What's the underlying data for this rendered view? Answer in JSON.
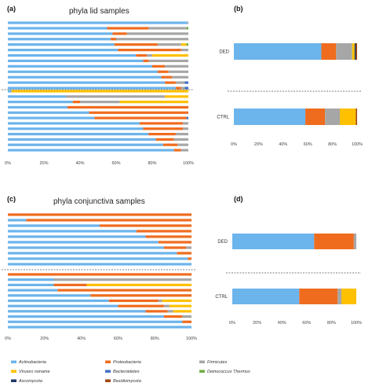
{
  "colors": {
    "Actinobacteria": "#6cb4ec",
    "Proteobacteria": "#ef6c1e",
    "Firmicutes": "#a6a6a6",
    "Viruses noname": "#ffc000",
    "Bacteroidetes": "#4472c4",
    "Deinococcus Thermus": "#70ad47",
    "Ascomycota": "#1f3864",
    "Basidiomycota": "#9e480e"
  },
  "legend": [
    "Actinobacteria",
    "Proteobacteria",
    "Firmicutes",
    "Viruses noname",
    "Bacteroidetes",
    "Deinococcus Thermus",
    "Ascomycota",
    "Basidiomycota"
  ],
  "chart_data": [
    {
      "id": "a",
      "panel_label": "(a)",
      "type": "bar",
      "orientation": "horizontal",
      "stacked": true,
      "title": "phyla lid samples",
      "xlim": [
        0,
        100
      ],
      "xticks": [
        "0%",
        "20%",
        "40%",
        "60%",
        "80%",
        "100%"
      ],
      "groups": [
        {
          "name": "",
          "rows": [
            {
              "Actinobacteria": 99.5,
              "Proteobacteria": 0,
              "Firmicutes": 0.5
            },
            {
              "Actinobacteria": 55,
              "Proteobacteria": 23,
              "Firmicutes": 21,
              "Deinococcus Thermus": 1
            },
            {
              "Actinobacteria": 58,
              "Proteobacteria": 8,
              "Firmicutes": 34
            },
            {
              "Actinobacteria": 57,
              "Proteobacteria": 3,
              "Firmicutes": 40
            },
            {
              "Actinobacteria": 59,
              "Proteobacteria": 24,
              "Firmicutes": 13,
              "Viruses noname": 3,
              "Deinococcus Thermus": 1
            },
            {
              "Actinobacteria": 61,
              "Proteobacteria": 35,
              "Firmicutes": 4
            },
            {
              "Actinobacteria": 71,
              "Proteobacteria": 6,
              "Firmicutes": 3,
              "Viruses noname": 20
            },
            {
              "Actinobacteria": 75,
              "Proteobacteria": 3,
              "Firmicutes": 22
            },
            {
              "Actinobacteria": 80,
              "Proteobacteria": 7,
              "Firmicutes": 13
            },
            {
              "Actinobacteria": 83,
              "Proteobacteria": 6,
              "Firmicutes": 11
            },
            {
              "Actinobacteria": 85,
              "Proteobacteria": 6,
              "Firmicutes": 9
            },
            {
              "Actinobacteria": 87,
              "Proteobacteria": 6,
              "Firmicutes": 5,
              "Bacteroidetes": 2
            },
            {
              "Actinobacteria": 93,
              "Proteobacteria": 3,
              "Firmicutes": 2,
              "Bacteroidetes": 2
            }
          ]
        },
        {
          "name": "",
          "rows": [
            {
              "Actinobacteria": 2,
              "Viruses noname": 98
            },
            {
              "Actinobacteria": 32,
              "Proteobacteria": 0,
              "Firmicutes": 55,
              "Viruses noname": 13
            },
            {
              "Actinobacteria": 36,
              "Proteobacteria": 4,
              "Firmicutes": 22,
              "Viruses noname": 38
            },
            {
              "Actinobacteria": 33,
              "Proteobacteria": 67
            },
            {
              "Actinobacteria": 45,
              "Proteobacteria": 55
            },
            {
              "Actinobacteria": 48,
              "Proteobacteria": 51,
              "Bacteroidetes": 1
            },
            {
              "Actinobacteria": 73,
              "Proteobacteria": 24,
              "Firmicutes": 3
            },
            {
              "Actinobacteria": 75,
              "Proteobacteria": 22,
              "Firmicutes": 3
            },
            {
              "Actinobacteria": 78,
              "Proteobacteria": 15,
              "Firmicutes": 7
            },
            {
              "Actinobacteria": 82,
              "Proteobacteria": 10,
              "Firmicutes": 8
            },
            {
              "Actinobacteria": 86,
              "Proteobacteria": 8,
              "Firmicutes": 6
            },
            {
              "Actinobacteria": 92,
              "Proteobacteria": 4,
              "Firmicutes": 4
            }
          ]
        }
      ]
    },
    {
      "id": "b",
      "panel_label": "(b)",
      "type": "bar",
      "orientation": "horizontal",
      "stacked": true,
      "title": "",
      "xlim": [
        0,
        100
      ],
      "xticks": [
        "0%",
        "20%",
        "40%",
        "60%",
        "80%",
        "100%"
      ],
      "groups": [
        {
          "name": "DED",
          "rows": [
            {
              "Actinobacteria": 71,
              "Proteobacteria": 12,
              "Firmicutes": 13,
              "Viruses noname": 2,
              "Basidiomycota": 1,
              "Ascomycota": 1
            }
          ]
        },
        {
          "name": "CTRL",
          "rows": [
            {
              "Actinobacteria": 58,
              "Proteobacteria": 16,
              "Firmicutes": 12,
              "Viruses noname": 13,
              "Basidiomycota": 1
            }
          ]
        }
      ]
    },
    {
      "id": "c",
      "panel_label": "(c)",
      "type": "bar",
      "orientation": "horizontal",
      "stacked": true,
      "title": "phyla conjunctiva samples",
      "xlim": [
        0,
        100
      ],
      "xticks": [
        "0%",
        "20%",
        "40%",
        "60%",
        "80%",
        "100%"
      ],
      "groups": [
        {
          "name": "",
          "rows": [
            {
              "Actinobacteria": 0,
              "Proteobacteria": 100
            },
            {
              "Actinobacteria": 10,
              "Proteobacteria": 90
            },
            {
              "Actinobacteria": 50,
              "Proteobacteria": 50
            },
            {
              "Actinobacteria": 70,
              "Proteobacteria": 30
            },
            {
              "Actinobacteria": 75,
              "Proteobacteria": 25
            },
            {
              "Actinobacteria": 82,
              "Proteobacteria": 18
            },
            {
              "Actinobacteria": 85,
              "Proteobacteria": 12,
              "Firmicutes": 3
            },
            {
              "Actinobacteria": 92,
              "Proteobacteria": 8
            },
            {
              "Actinobacteria": 98,
              "Proteobacteria": 2
            },
            {
              "Actinobacteria": 100
            }
          ]
        },
        {
          "name": "",
          "rows": [
            {
              "Actinobacteria": 0,
              "Proteobacteria": 100
            },
            {
              "Actinobacteria": 25,
              "Proteobacteria": 0,
              "Firmicutes": 75
            },
            {
              "Actinobacteria": 25,
              "Proteobacteria": 18,
              "Firmicutes": 0,
              "Viruses noname": 57
            },
            {
              "Actinobacteria": 27,
              "Proteobacteria": 73
            },
            {
              "Actinobacteria": 45,
              "Proteobacteria": 55
            },
            {
              "Actinobacteria": 55,
              "Proteobacteria": 27,
              "Firmicutes": 2,
              "Viruses noname": 16
            },
            {
              "Actinobacteria": 60,
              "Proteobacteria": 25,
              "Firmicutes": 3,
              "Viruses noname": 12
            },
            {
              "Actinobacteria": 75,
              "Proteobacteria": 12,
              "Firmicutes": 3,
              "Viruses noname": 10
            },
            {
              "Actinobacteria": 85,
              "Proteobacteria": 10,
              "Firmicutes": 5
            },
            {
              "Actinobacteria": 95,
              "Proteobacteria": 5
            },
            {
              "Actinobacteria": 100
            }
          ]
        }
      ]
    },
    {
      "id": "d",
      "panel_label": "(d)",
      "type": "bar",
      "orientation": "horizontal",
      "stacked": true,
      "title": "",
      "xlim": [
        0,
        100
      ],
      "xticks": [
        "0%",
        "20%",
        "40%",
        "60%",
        "80%",
        "100%"
      ],
      "groups": [
        {
          "name": "DED",
          "rows": [
            {
              "Actinobacteria": 66,
              "Proteobacteria": 32,
              "Firmicutes": 2
            }
          ]
        },
        {
          "name": "CTRL",
          "rows": [
            {
              "Actinobacteria": 54,
              "Proteobacteria": 31,
              "Firmicutes": 3,
              "Viruses noname": 12
            }
          ]
        }
      ]
    }
  ]
}
